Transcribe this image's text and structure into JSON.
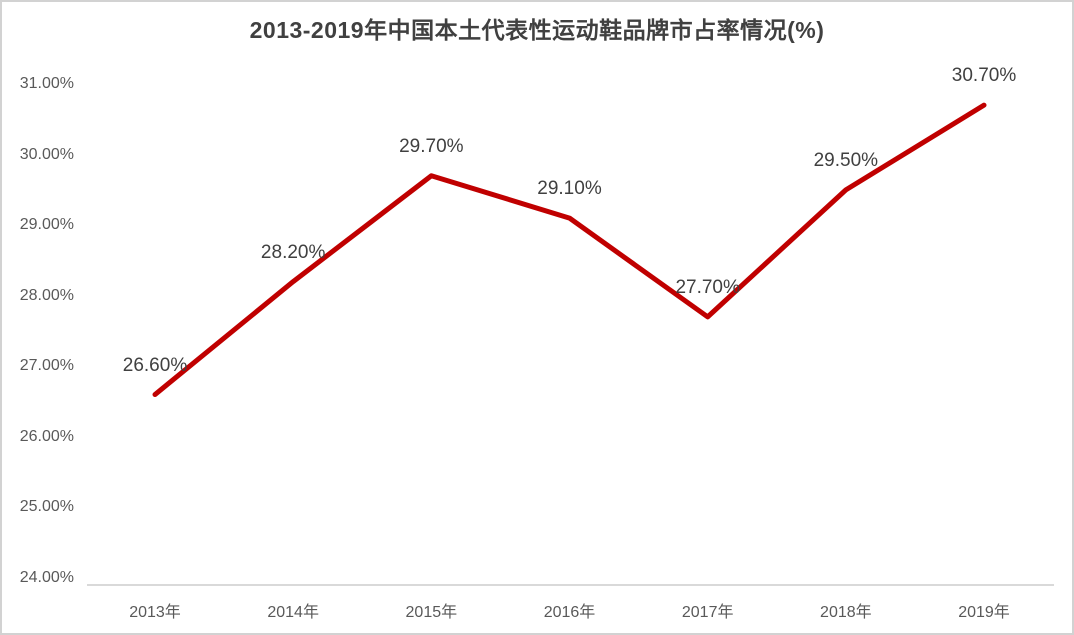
{
  "chart_data": {
    "type": "line",
    "title": "2013-2019年中国本土代表性运动鞋品牌市占率情况(%)",
    "categories": [
      "2013年",
      "2014年",
      "2015年",
      "2016年",
      "2017年",
      "2018年",
      "2019年"
    ],
    "values": [
      26.6,
      28.2,
      29.7,
      29.1,
      27.7,
      29.5,
      30.7
    ],
    "data_labels": [
      "26.60%",
      "28.20%",
      "29.70%",
      "29.10%",
      "27.70%",
      "29.50%",
      "30.70%"
    ],
    "y_tick_labels": [
      "24.00%",
      "25.00%",
      "26.00%",
      "27.00%",
      "28.00%",
      "29.00%",
      "30.00%",
      "31.00%"
    ],
    "y_tick_values": [
      24,
      25,
      26,
      27,
      28,
      29,
      30,
      31
    ],
    "ylim": [
      24,
      31
    ],
    "xlabel": "",
    "ylabel": "",
    "grid": false,
    "legend": "none",
    "colors": {
      "line": "#C00000",
      "data_label": "#404040",
      "axis_label": "#595959",
      "axis_line": "#D9D9D9",
      "title": "#404040",
      "background": "#FFFFFF",
      "frame_border": "#D2D2D2"
    }
  }
}
